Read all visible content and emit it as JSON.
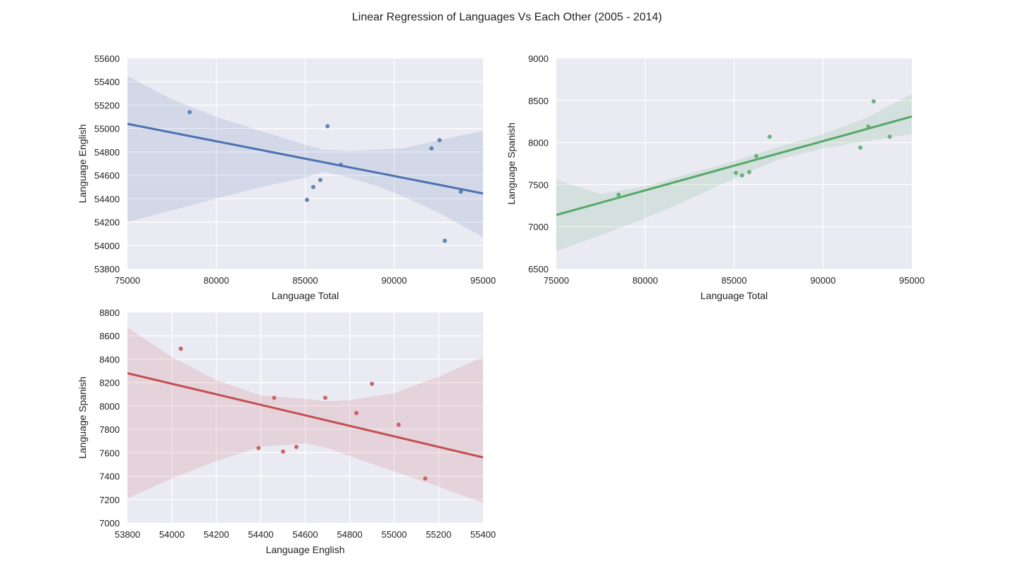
{
  "figure": {
    "title": "Linear Regression of Languages Vs Each Other (2005 - 2014)"
  },
  "chart_data": [
    {
      "type": "scatter",
      "id": "english-vs-total",
      "xlabel": "Language Total",
      "ylabel": "Language English",
      "xlim": [
        75000,
        95000
      ],
      "ylim": [
        53800,
        55600
      ],
      "xticks": [
        75000,
        80000,
        85000,
        90000,
        95000
      ],
      "yticks": [
        53800,
        54000,
        54200,
        54400,
        54600,
        54800,
        55000,
        55200,
        55400,
        55600
      ],
      "grid": true,
      "color": "#4C72B0",
      "points": [
        {
          "x": 78500,
          "y": 55140
        },
        {
          "x": 85100,
          "y": 54390
        },
        {
          "x": 85450,
          "y": 54500
        },
        {
          "x": 85850,
          "y": 54560
        },
        {
          "x": 86250,
          "y": 55020
        },
        {
          "x": 87000,
          "y": 54690
        },
        {
          "x": 92100,
          "y": 54830
        },
        {
          "x": 92550,
          "y": 54900
        },
        {
          "x": 92850,
          "y": 54040
        },
        {
          "x": 93750,
          "y": 54460
        }
      ],
      "fit_line": [
        {
          "x": 75000,
          "y": 55040
        },
        {
          "x": 95000,
          "y": 54445
        }
      ],
      "ci_band": {
        "x": [
          75000,
          77500,
          80000,
          82500,
          85000,
          86000,
          87500,
          89000,
          90500,
          92500,
          95000
        ],
        "lower": [
          54200,
          54300,
          54400,
          54500,
          54580,
          54630,
          54580,
          54510,
          54420,
          54280,
          54070
        ],
        "upper": [
          55450,
          55250,
          55100,
          54980,
          54860,
          54820,
          54810,
          54820,
          54830,
          54900,
          54980
        ]
      }
    },
    {
      "type": "scatter",
      "id": "spanish-vs-total",
      "xlabel": "Language Total",
      "ylabel": "Language Spanish",
      "xlim": [
        75000,
        95000
      ],
      "ylim": [
        6500,
        9000
      ],
      "xticks": [
        75000,
        80000,
        85000,
        90000,
        95000
      ],
      "yticks": [
        6500,
        7000,
        7500,
        8000,
        8500,
        9000
      ],
      "grid": true,
      "color": "#55A868",
      "points": [
        {
          "x": 78500,
          "y": 7380
        },
        {
          "x": 85100,
          "y": 7640
        },
        {
          "x": 85450,
          "y": 7610
        },
        {
          "x": 85850,
          "y": 7650
        },
        {
          "x": 86250,
          "y": 7840
        },
        {
          "x": 87000,
          "y": 8070
        },
        {
          "x": 92100,
          "y": 7940
        },
        {
          "x": 92550,
          "y": 8190
        },
        {
          "x": 92850,
          "y": 8490
        },
        {
          "x": 93750,
          "y": 8070
        }
      ],
      "fit_line": [
        {
          "x": 75000,
          "y": 7140
        },
        {
          "x": 95000,
          "y": 8310
        }
      ],
      "ci_band": {
        "x": [
          75000,
          77500,
          80000,
          82500,
          85000,
          87500,
          90000,
          92500,
          95000
        ],
        "lower": [
          6710,
          6900,
          7100,
          7330,
          7570,
          7800,
          7930,
          8020,
          8100
        ],
        "upper": [
          7560,
          7390,
          7480,
          7630,
          7780,
          7950,
          8100,
          8300,
          8580
        ]
      }
    },
    {
      "type": "scatter",
      "id": "spanish-vs-english",
      "xlabel": "Language English",
      "ylabel": "Language Spanish",
      "xlim": [
        53800,
        55400
      ],
      "ylim": [
        7000,
        8800
      ],
      "xticks": [
        53800,
        54000,
        54200,
        54400,
        54600,
        54800,
        55000,
        55200,
        55400
      ],
      "yticks": [
        7000,
        7200,
        7400,
        7600,
        7800,
        8000,
        8200,
        8400,
        8600,
        8800
      ],
      "grid": true,
      "color": "#C44E52",
      "points": [
        {
          "x": 54040,
          "y": 8490
        },
        {
          "x": 54390,
          "y": 7640
        },
        {
          "x": 54460,
          "y": 8070
        },
        {
          "x": 54500,
          "y": 7610
        },
        {
          "x": 54560,
          "y": 7650
        },
        {
          "x": 54690,
          "y": 8070
        },
        {
          "x": 54830,
          "y": 7940
        },
        {
          "x": 54900,
          "y": 8190
        },
        {
          "x": 55020,
          "y": 7840
        },
        {
          "x": 55140,
          "y": 7380
        }
      ],
      "fit_line": [
        {
          "x": 53800,
          "y": 8280
        },
        {
          "x": 55400,
          "y": 7560
        }
      ],
      "ci_band": {
        "x": [
          53800,
          54000,
          54200,
          54400,
          54600,
          54700,
          54800,
          55000,
          55200,
          55400
        ],
        "lower": [
          7210,
          7380,
          7530,
          7650,
          7680,
          7640,
          7570,
          7440,
          7310,
          7170
        ],
        "upper": [
          8670,
          8420,
          8220,
          8090,
          8060,
          8040,
          8050,
          8110,
          8250,
          8420
        ]
      }
    }
  ]
}
